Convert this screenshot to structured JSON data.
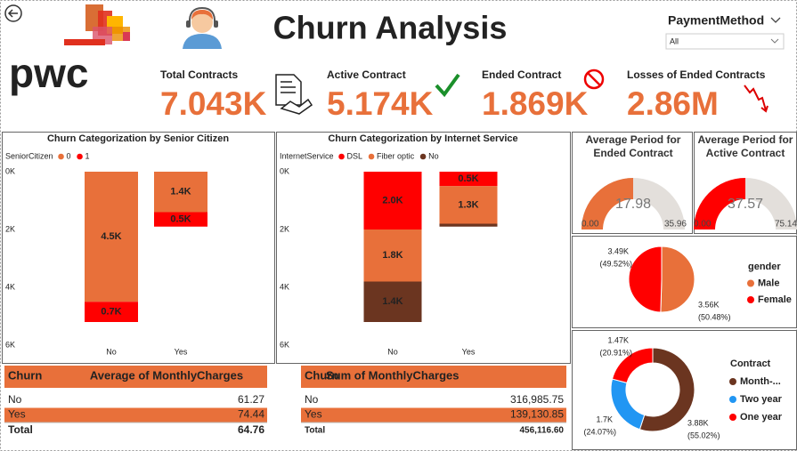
{
  "header": {
    "title": "Churn Analysis",
    "logo": "pwc"
  },
  "slicer": {
    "label": "PaymentMethod",
    "value": "All"
  },
  "kpis": [
    {
      "label": "Total Contracts",
      "value": "7.043K"
    },
    {
      "label": "Active Contract",
      "value": "5.174K"
    },
    {
      "label": "Ended Contract",
      "value": "1.869K"
    },
    {
      "label": "Losses of Ended Contracts",
      "value": "2.86M"
    }
  ],
  "chart_data": [
    {
      "type": "stacked_bar",
      "title": "Churn Categorization by Senior Citizen",
      "legend_title": "SeniorCitizen",
      "categories": [
        "No",
        "Yes"
      ],
      "series": [
        {
          "name": "0",
          "color": "#e8703a",
          "values": [
            4.5,
            1.4
          ],
          "value_labels": [
            "4.5K",
            "1.4K"
          ]
        },
        {
          "name": "1",
          "color": "#ff0000",
          "values": [
            0.7,
            0.5
          ],
          "value_labels": [
            "0.7K",
            "0.5K"
          ]
        }
      ],
      "ylim": [
        0,
        6
      ],
      "y_reversed": true,
      "yticks": [
        {
          "value": 0,
          "label": "0K"
        },
        {
          "value": 2,
          "label": "2K"
        },
        {
          "value": 4,
          "label": "4K"
        },
        {
          "value": 6,
          "label": "6K"
        }
      ]
    },
    {
      "type": "stacked_bar",
      "title": "Churn Categorization by Internet Service",
      "legend_title": "InternetService",
      "categories": [
        "No",
        "Yes"
      ],
      "series": [
        {
          "name": "DSL",
          "color": "#ff0000",
          "values": [
            2.0,
            0.5
          ],
          "value_labels": [
            "2.0K",
            "0.5K"
          ]
        },
        {
          "name": "Fiber optic",
          "color": "#e8703a",
          "values": [
            1.8,
            1.3
          ],
          "value_labels": [
            "1.8K",
            "1.3K"
          ]
        },
        {
          "name": "No",
          "color": "#6b3520",
          "values": [
            1.4,
            0.1
          ],
          "value_labels": [
            "1.4K",
            null
          ]
        }
      ],
      "ylim": [
        0,
        6
      ],
      "y_reversed": true,
      "yticks": [
        {
          "value": 0,
          "label": "0K"
        },
        {
          "value": 2,
          "label": "2K"
        },
        {
          "value": 4,
          "label": "4K"
        },
        {
          "value": 6,
          "label": "6K"
        }
      ]
    },
    {
      "type": "gauge",
      "title": "Average Period for Ended Contract",
      "value": 17.98,
      "min": {
        "value": 0,
        "label": "0.00"
      },
      "max": 35.96,
      "color": "#e8703a"
    },
    {
      "type": "gauge",
      "title": "Average Period for Active Contract",
      "value": 37.57,
      "min": {
        "value": 0,
        "label": "0.00"
      },
      "max": 75.14,
      "color": "#ff0000"
    },
    {
      "type": "pie",
      "legend_title": "gender",
      "categories": [
        "Male",
        "Female"
      ],
      "colors": [
        "#e8703a",
        "#ff0000"
      ],
      "values": [
        3.56,
        3.49
      ],
      "value_labels": [
        "3.56K",
        "3.49K"
      ],
      "percents": [
        50.48,
        49.52
      ],
      "percent_labels": [
        "(50.48%)",
        "(49.52%)"
      ]
    },
    {
      "type": "donut",
      "legend_title": "Contract",
      "categories": [
        "Month-...",
        "Two year",
        "One year"
      ],
      "colors": [
        "#6b3520",
        "#2196f3",
        "#ff0000"
      ],
      "values": [
        3.88,
        1.7,
        1.47
      ],
      "value_labels": [
        "3.88K",
        "1.7K",
        "1.47K"
      ],
      "percents": [
        55.02,
        24.07,
        20.91
      ],
      "percent_labels": [
        "(55.02%)",
        "(24.07%)",
        "(20.91%)"
      ]
    }
  ],
  "tables": [
    {
      "columns": [
        "Churn",
        "Average of MonthlyCharges"
      ],
      "rows": [
        [
          "No",
          "61.27"
        ],
        [
          "Yes",
          "74.44"
        ]
      ],
      "total": [
        "Total",
        "64.76"
      ]
    },
    {
      "columns": [
        "Churn",
        "Sum of MonthlyCharges"
      ],
      "rows": [
        [
          "No",
          "316,985.75"
        ],
        [
          "Yes",
          "139,130.85"
        ]
      ],
      "total": [
        "Total",
        "456,116.60"
      ]
    }
  ]
}
